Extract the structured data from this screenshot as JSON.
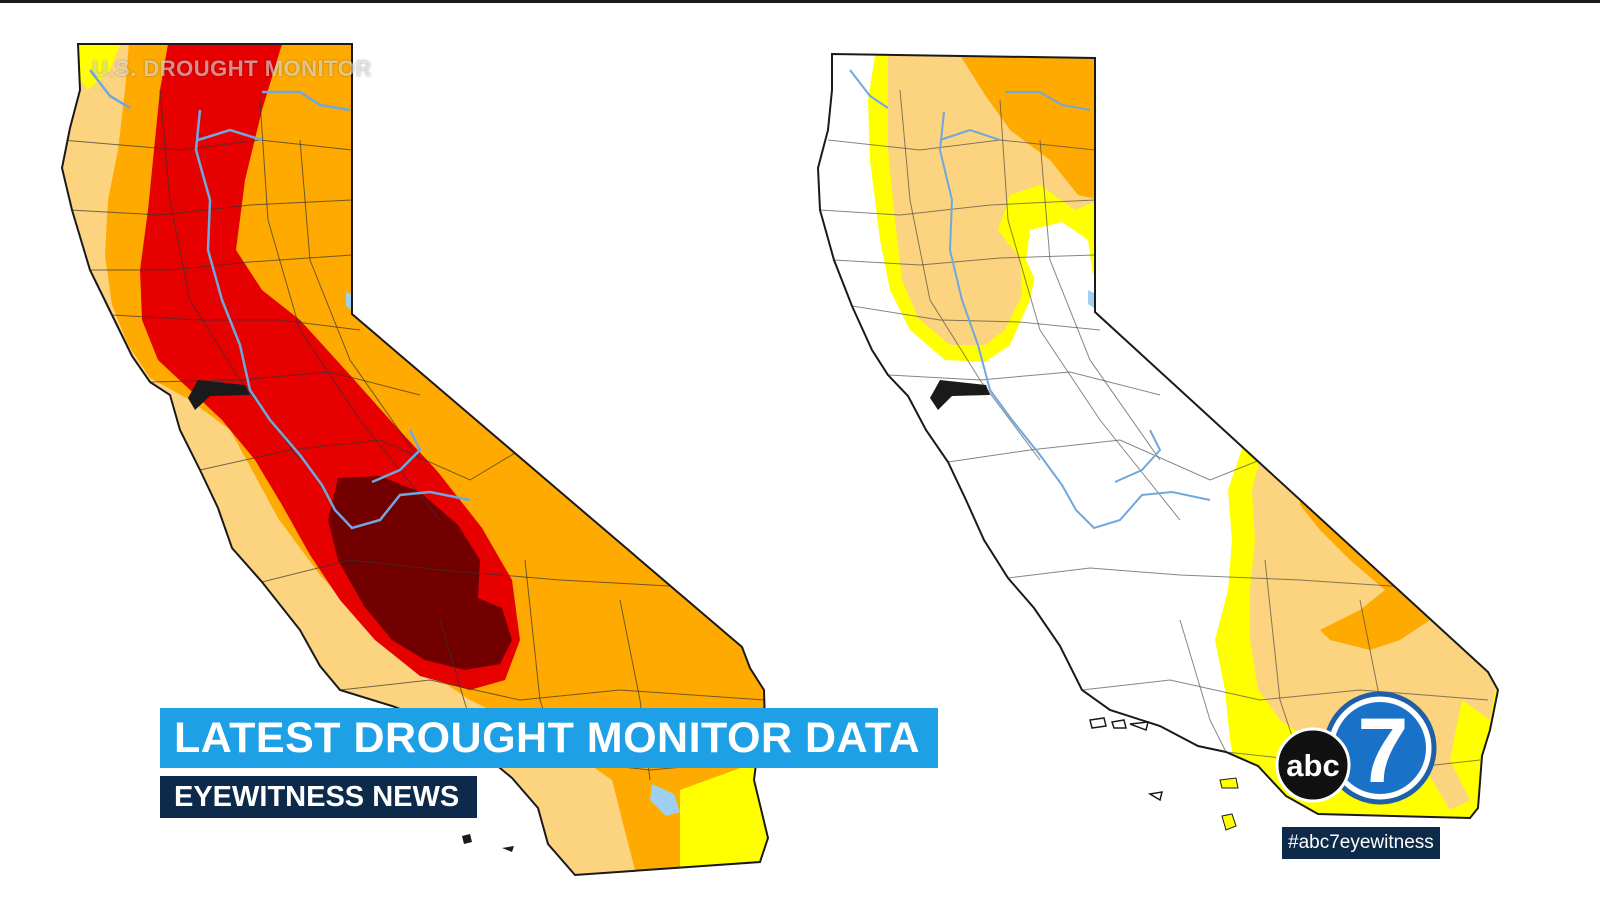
{
  "watermark": "U.S. DROUGHT MONITOR",
  "lower_third": {
    "headline": "LATEST DROUGHT MONITOR DATA",
    "subheadline": "EYEWITNESS NEWS"
  },
  "logo": {
    "network": "abc",
    "channel": "7"
  },
  "hashtag": "#abc7eyewitness",
  "colors": {
    "none": "#ffffff",
    "abnormally_dry": "#ffff00",
    "moderate": "#fcd37f",
    "severe": "#ffaa00",
    "extreme": "#e60000",
    "exceptional": "#730000",
    "rivers": "#6fa8dc",
    "headline_bg": "#1ea0e6",
    "subhead_bg": "#0d2a4a"
  }
}
